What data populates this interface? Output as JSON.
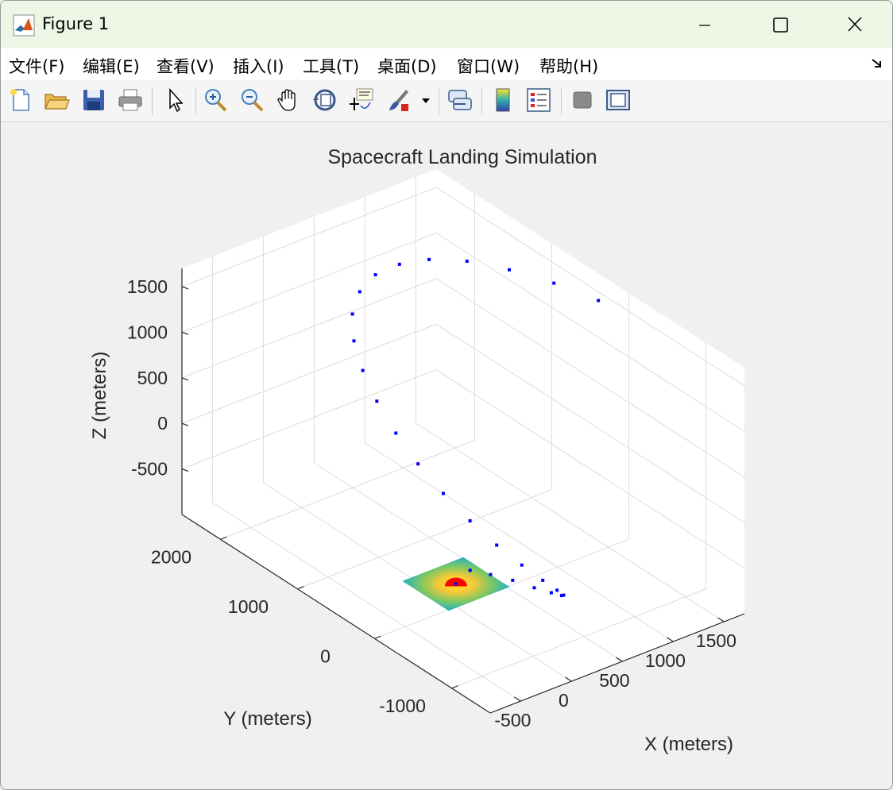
{
  "window": {
    "title": "Figure 1"
  },
  "menu": [
    {
      "label": "文件(F)"
    },
    {
      "label": "编辑(E)"
    },
    {
      "label": "查看(V)"
    },
    {
      "label": "插入(I)"
    },
    {
      "label": "工具(T)"
    },
    {
      "label": "桌面(D)"
    },
    {
      "label": "窗口(W)"
    },
    {
      "label": "帮助(H)"
    }
  ],
  "toolbar_icons": [
    "new-figure-icon",
    "open-file-icon",
    "save-icon",
    "print-icon",
    "edit-plot-icon",
    "zoom-in-icon",
    "zoom-out-icon",
    "pan-icon",
    "rotate-3d-icon",
    "data-cursor-icon",
    "brush-icon",
    "link-plot-icon",
    "colorbar-icon",
    "legend-icon",
    "hide-plot-tools-icon",
    "show-plot-tools-icon"
  ],
  "chart_data": {
    "type": "scatter3d",
    "title": "Spacecraft Landing Simulation",
    "xlabel": "X (meters)",
    "ylabel": "Y (meters)",
    "zlabel": "Z (meters)",
    "x_ticks": [
      "-500",
      "0",
      "500",
      "1000",
      "1500"
    ],
    "y_ticks": [
      "-1000",
      "0",
      "1000",
      "2000"
    ],
    "z_ticks": [
      "-500",
      "0",
      "500",
      "1000",
      "1500"
    ],
    "xlim": [
      -800,
      1700
    ],
    "ylim": [
      -1500,
      2500
    ],
    "zlim": [
      -1000,
      1700
    ],
    "grid": true,
    "trajectory_color": "#0000ff",
    "surface_colormap": "parula",
    "surface_extent": {
      "x": [
        -300,
        300
      ],
      "y": [
        -300,
        300
      ],
      "z": -750
    },
    "target_marker": {
      "x": 0,
      "y": 0,
      "z": -750,
      "color": "#ff0000"
    },
    "trajectory": [
      [
        1400,
        0,
        1750
      ],
      [
        1380,
        550,
        1650
      ],
      [
        1320,
        1050,
        1550
      ],
      [
        1230,
        1480,
        1450
      ],
      [
        1100,
        1800,
        1350
      ],
      [
        960,
        2000,
        1250
      ],
      [
        800,
        2100,
        1150
      ],
      [
        630,
        2080,
        1050
      ],
      [
        460,
        1950,
        950
      ],
      [
        300,
        1720,
        850
      ],
      [
        160,
        1420,
        750
      ],
      [
        40,
        1080,
        650
      ],
      [
        -60,
        700,
        550
      ],
      [
        -130,
        320,
        450
      ],
      [
        -170,
        -60,
        350
      ],
      [
        -180,
        -420,
        250
      ],
      [
        -160,
        -740,
        150
      ],
      [
        -110,
        -1000,
        50
      ],
      [
        -40,
        -1180,
        -50
      ],
      [
        40,
        -1260,
        -150
      ],
      [
        120,
        -1240,
        -250
      ],
      [
        190,
        -1120,
        -350
      ],
      [
        240,
        -920,
        -450
      ],
      [
        270,
        -660,
        -550
      ],
      [
        270,
        -380,
        -620
      ],
      [
        250,
        -120,
        -690
      ],
      [
        200,
        80,
        -730
      ],
      [
        130,
        200,
        -755
      ],
      [
        60,
        230,
        -770
      ],
      [
        0,
        180,
        -780
      ],
      [
        -40,
        80,
        -785
      ],
      [
        -50,
        -20,
        -780
      ],
      [
        -30,
        -100,
        -775
      ],
      [
        10,
        -120,
        -770
      ],
      [
        40,
        -80,
        -765
      ],
      [
        50,
        0,
        -760
      ],
      [
        30,
        50,
        -758
      ],
      [
        0,
        50,
        -755
      ],
      [
        -20,
        20,
        -752
      ],
      [
        0,
        0,
        -750
      ]
    ]
  }
}
